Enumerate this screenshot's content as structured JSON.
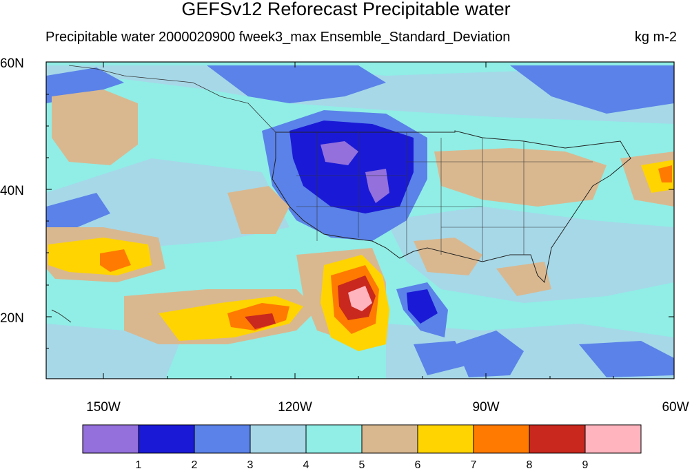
{
  "title": "GEFSv12 Reforecast Precipitable water",
  "subtitle": {
    "left": "Precipitable water",
    "center": "2000020900 fweek3_max Ensemble_Standard_Deviation",
    "right": "kg m-2"
  },
  "axes": {
    "lat_labels": [
      "60N",
      "40N",
      "20N"
    ],
    "lon_labels": [
      "150W",
      "120W",
      "90W",
      "60W"
    ]
  },
  "colorbar": {
    "colors": [
      "#9370db",
      "#1a1ad6",
      "#5a82e8",
      "#a6d8e8",
      "#90eee6",
      "#d9b890",
      "#ffd400",
      "#ff7a00",
      "#c8281e",
      "#ffb4be"
    ],
    "labels": [
      "1",
      "2",
      "3",
      "4",
      "5",
      "6",
      "7",
      "8",
      "9"
    ]
  },
  "map_colors": {
    "background": "#90eee6",
    "ocean_ocean": "#a6d8e8"
  }
}
